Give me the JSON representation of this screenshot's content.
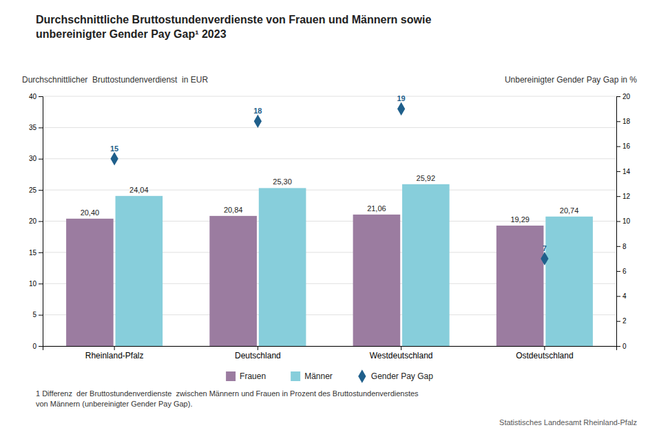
{
  "chart_data": {
    "type": "bar",
    "title": "Durchschnittliche Bruttostundenverdienste von Frauen und Männern sowie\nunbereinigter Gender Pay Gap¹ 2023",
    "categories": [
      "Rheinland-Pfalz",
      "Deutschland",
      "Westdeutschland",
      "Ostdeutschland"
    ],
    "series": [
      {
        "name": "Frauen",
        "type": "bar",
        "color": "#9B7CA0",
        "values": [
          20.4,
          20.84,
          21.06,
          19.29
        ],
        "value_labels": [
          "20,40",
          "20,84",
          "21,06",
          "19,29"
        ]
      },
      {
        "name": "Männer",
        "type": "bar",
        "color": "#87CEDB",
        "values": [
          24.04,
          25.3,
          25.92,
          20.74
        ],
        "value_labels": [
          "24,04",
          "25,30",
          "25,92",
          "20,74"
        ]
      },
      {
        "name": "Gender Pay Gap",
        "type": "scatter",
        "axis": "y2",
        "marker": "diamond",
        "color": "#1F5F8B",
        "values": [
          15,
          18,
          19,
          7
        ]
      }
    ],
    "y_label": "Durchschnittlicher  Bruttostundenverdienst  in EUR",
    "y2_label": "Unbereinigter Gender Pay Gap in %",
    "ylim": [
      0,
      40
    ],
    "yticks": [
      0,
      5,
      10,
      15,
      20,
      25,
      30,
      35,
      40
    ],
    "y2lim": [
      0,
      20
    ],
    "y2ticks": [
      0,
      2,
      4,
      6,
      8,
      10,
      12,
      14,
      16,
      18,
      20
    ],
    "grid": true,
    "data_labels": true,
    "legend": "bottom",
    "footnote": "1 Differenz  der Bruttostundenverdienste  zwischen Männern und Frauen in Prozent des Bruttostundenverdienstes\nvon Männern (unbereinigter Gender Pay Gap).",
    "source": "Statistisches Landesamt Rheinland-Pfalz"
  }
}
